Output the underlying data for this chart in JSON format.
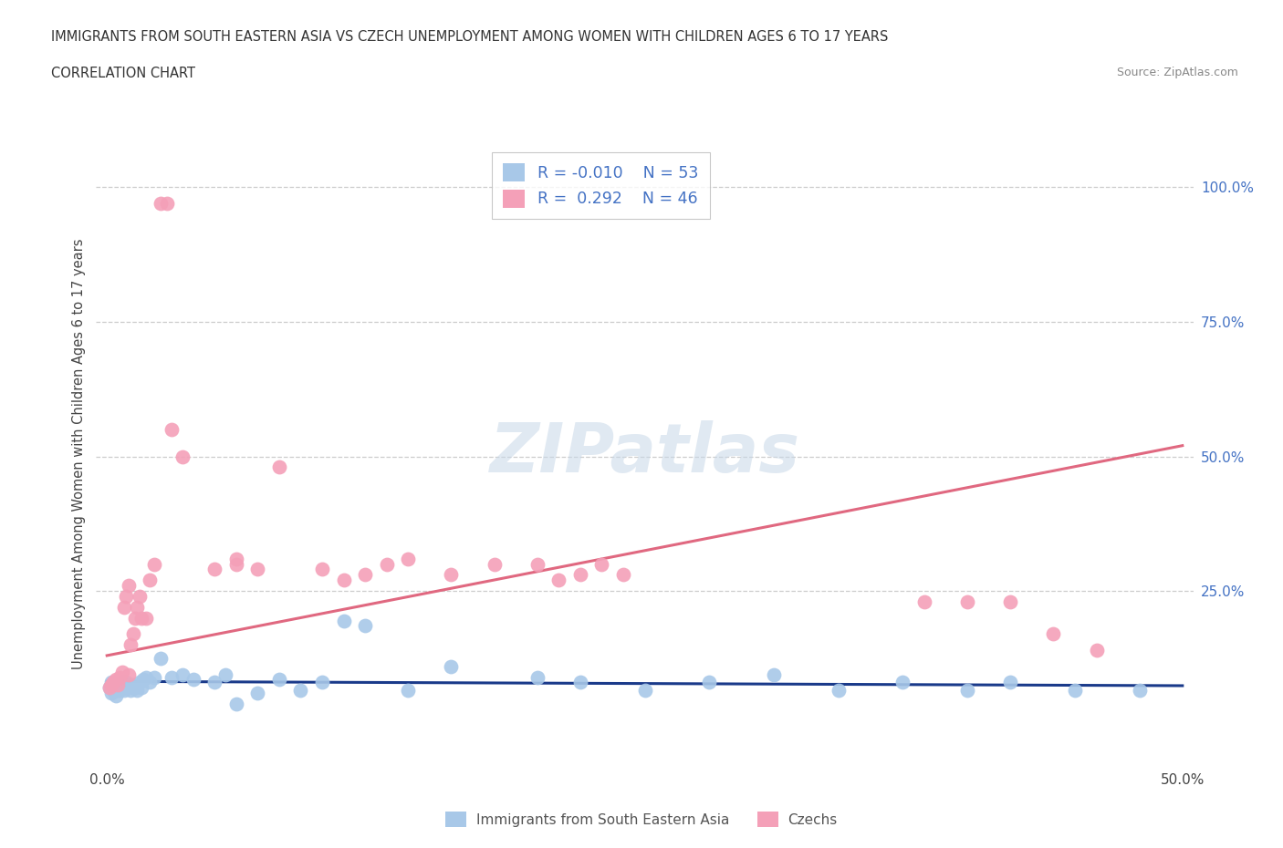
{
  "title": "IMMIGRANTS FROM SOUTH EASTERN ASIA VS CZECH UNEMPLOYMENT AMONG WOMEN WITH CHILDREN AGES 6 TO 17 YEARS",
  "subtitle": "CORRELATION CHART",
  "source": "Source: ZipAtlas.com",
  "ylabel": "Unemployment Among Women with Children Ages 6 to 17 years",
  "ytick_labels": [
    "100.0%",
    "75.0%",
    "50.0%",
    "25.0%"
  ],
  "ytick_values": [
    1.0,
    0.75,
    0.5,
    0.25
  ],
  "xlim": [
    -0.005,
    0.505
  ],
  "ylim": [
    -0.07,
    1.08
  ],
  "legend_label1": "Immigrants from South Eastern Asia",
  "legend_label2": "Czechs",
  "R1": -0.01,
  "N1": 53,
  "R2": 0.292,
  "N2": 46,
  "watermark": "ZIPatlas",
  "color_blue": "#a8c8e8",
  "color_pink": "#f4a0b8",
  "line_blue": "#1a3a8a",
  "line_pink": "#e06880",
  "blue_x": [
    0.001,
    0.002,
    0.002,
    0.003,
    0.003,
    0.004,
    0.004,
    0.005,
    0.005,
    0.006,
    0.006,
    0.007,
    0.007,
    0.008,
    0.008,
    0.009,
    0.01,
    0.011,
    0.012,
    0.013,
    0.014,
    0.015,
    0.016,
    0.017,
    0.018,
    0.02,
    0.022,
    0.025,
    0.03,
    0.035,
    0.04,
    0.05,
    0.055,
    0.06,
    0.07,
    0.08,
    0.09,
    0.1,
    0.11,
    0.12,
    0.14,
    0.16,
    0.2,
    0.22,
    0.25,
    0.28,
    0.31,
    0.34,
    0.37,
    0.4,
    0.42,
    0.45,
    0.48
  ],
  "blue_y": [
    0.07,
    0.06,
    0.08,
    0.065,
    0.075,
    0.07,
    0.055,
    0.065,
    0.075,
    0.07,
    0.065,
    0.075,
    0.08,
    0.07,
    0.065,
    0.08,
    0.07,
    0.065,
    0.075,
    0.07,
    0.065,
    0.08,
    0.07,
    0.085,
    0.09,
    0.08,
    0.09,
    0.125,
    0.09,
    0.095,
    0.085,
    0.08,
    0.095,
    0.04,
    0.06,
    0.085,
    0.065,
    0.08,
    0.195,
    0.185,
    0.065,
    0.11,
    0.09,
    0.08,
    0.065,
    0.08,
    0.095,
    0.065,
    0.08,
    0.065,
    0.08,
    0.065,
    0.065
  ],
  "pink_x": [
    0.001,
    0.002,
    0.003,
    0.004,
    0.005,
    0.006,
    0.007,
    0.008,
    0.009,
    0.01,
    0.011,
    0.012,
    0.013,
    0.014,
    0.015,
    0.016,
    0.018,
    0.02,
    0.022,
    0.025,
    0.028,
    0.03,
    0.035,
    0.06,
    0.07,
    0.08,
    0.1,
    0.11,
    0.12,
    0.13,
    0.14,
    0.16,
    0.18,
    0.2,
    0.21,
    0.22,
    0.23,
    0.24,
    0.38,
    0.4,
    0.42,
    0.44,
    0.46,
    0.01,
    0.05,
    0.06
  ],
  "pink_y": [
    0.07,
    0.075,
    0.08,
    0.085,
    0.075,
    0.09,
    0.1,
    0.22,
    0.24,
    0.095,
    0.15,
    0.17,
    0.2,
    0.22,
    0.24,
    0.2,
    0.2,
    0.27,
    0.3,
    0.97,
    0.97,
    0.55,
    0.5,
    0.3,
    0.29,
    0.48,
    0.29,
    0.27,
    0.28,
    0.3,
    0.31,
    0.28,
    0.3,
    0.3,
    0.27,
    0.28,
    0.3,
    0.28,
    0.23,
    0.23,
    0.23,
    0.17,
    0.14,
    0.26,
    0.29,
    0.31
  ],
  "blue_trend_x": [
    0.0,
    0.5
  ],
  "blue_trend_y": [
    0.082,
    0.074
  ],
  "pink_trend_x": [
    0.0,
    0.5
  ],
  "pink_trend_y": [
    0.13,
    0.52
  ],
  "grid_color": "#cccccc",
  "bg_color": "#ffffff",
  "title_color": "#333333",
  "axis_label_color": "#4472c4",
  "scatter_size": 130
}
